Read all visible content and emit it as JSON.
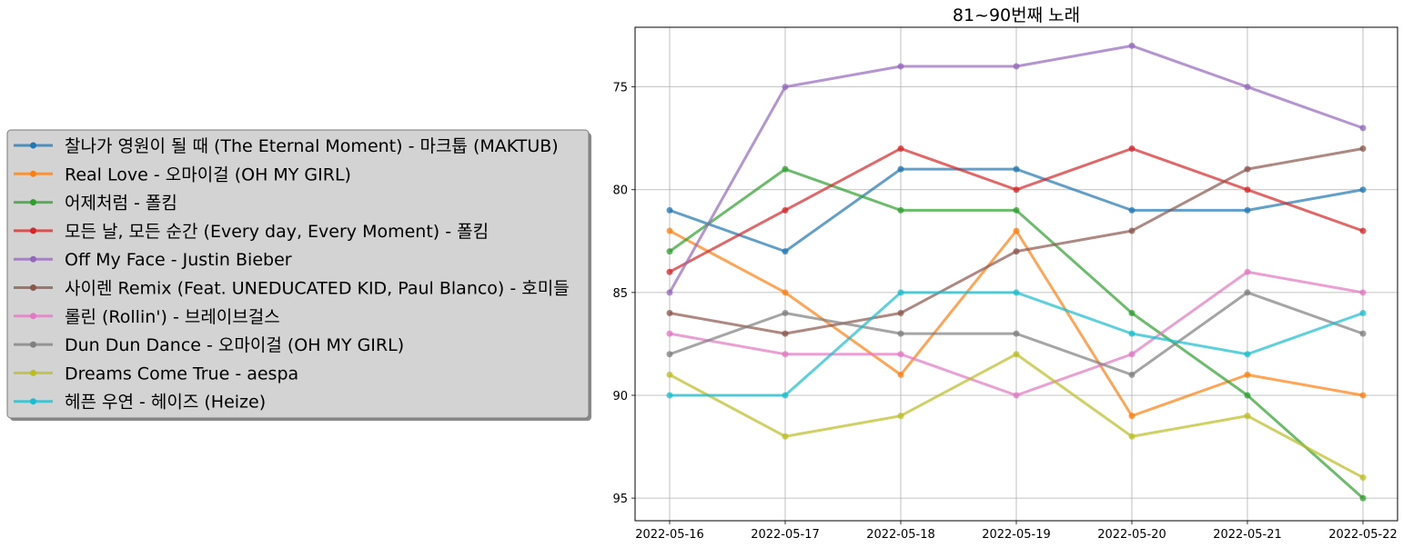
{
  "chart_data": {
    "type": "line",
    "title": "81~90번째 노래",
    "xlabel": "",
    "ylabel": "",
    "categories": [
      "2022-05-16",
      "2022-05-17",
      "2022-05-18",
      "2022-05-19",
      "2022-05-20",
      "2022-05-21",
      "2022-05-22"
    ],
    "yticks": [
      75,
      80,
      85,
      90,
      95
    ],
    "ylim": [
      96.1,
      72.1
    ],
    "y_inverted": true,
    "grid": true,
    "legend_position": "left",
    "series": [
      {
        "name": "찰나가 영원이 될 때 (The Eternal Moment) - 마크툽 (MAKTUB)",
        "color": "#1f77b4",
        "values": [
          81,
          83,
          79,
          79,
          81,
          81,
          80
        ]
      },
      {
        "name": "Real Love - 오마이걸 (OH MY GIRL)",
        "color": "#ff7f0e",
        "values": [
          82,
          85,
          89,
          82,
          91,
          89,
          90
        ]
      },
      {
        "name": "어제처럼 - 폴킴",
        "color": "#2ca02c",
        "values": [
          83,
          79,
          81,
          81,
          86,
          90,
          95
        ]
      },
      {
        "name": "모든 날, 모든 순간 (Every day, Every Moment) - 폴킴",
        "color": "#d62728",
        "values": [
          84,
          81,
          78,
          80,
          78,
          80,
          82
        ]
      },
      {
        "name": "Off My Face - Justin Bieber",
        "color": "#9467bd",
        "values": [
          85,
          75,
          74,
          74,
          73,
          75,
          77
        ]
      },
      {
        "name": "사이렌 Remix (Feat. UNEDUCATED KID, Paul Blanco) - 호미들",
        "color": "#8c564b",
        "values": [
          86,
          87,
          86,
          83,
          82,
          79,
          78
        ]
      },
      {
        "name": "롤린 (Rollin') - 브레이브걸스",
        "color": "#e377c2",
        "values": [
          87,
          88,
          88,
          90,
          88,
          84,
          85
        ]
      },
      {
        "name": "Dun Dun Dance - 오마이걸 (OH MY GIRL)",
        "color": "#7f7f7f",
        "values": [
          88,
          86,
          87,
          87,
          89,
          85,
          87
        ]
      },
      {
        "name": "Dreams Come True - aespa",
        "color": "#bcbd22",
        "values": [
          89,
          92,
          91,
          88,
          92,
          91,
          94
        ]
      },
      {
        "name": "헤픈 우연 - 헤이즈 (Heize)",
        "color": "#17becf",
        "values": [
          90,
          90,
          85,
          85,
          87,
          88,
          86
        ]
      }
    ]
  }
}
